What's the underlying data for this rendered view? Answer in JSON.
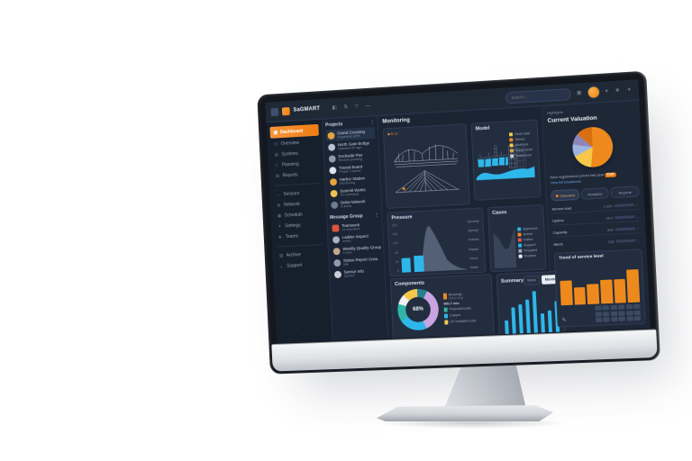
{
  "colors": {
    "accent_cyan": "#2eb7ea",
    "accent_orange": "#ee8a1d",
    "accent_yellow": "#f5c84c",
    "screen_bg": "#1b2432",
    "card_bg": "#222d40"
  },
  "brand": {
    "name": "SaGMART"
  },
  "topbar": {
    "nav_icons": [
      "◧",
      "⇅",
      "▽",
      "—"
    ],
    "search_placeholder": "Search...",
    "grid_icon": "▦",
    "caret_icon": "▾",
    "share_icon": "❖",
    "apps_icon": "✦"
  },
  "sidebar": {
    "active": {
      "icon": "▣",
      "label": "Dashboard"
    },
    "groups": [
      {
        "items": [
          {
            "icon": "◳",
            "label": "Overview"
          },
          {
            "icon": "▤",
            "label": "Systems"
          },
          {
            "icon": "◇",
            "label": "Planning"
          },
          {
            "icon": "▥",
            "label": "Reports"
          }
        ]
      },
      {
        "items": [
          {
            "icon": "◔",
            "label": "Sensors"
          },
          {
            "icon": "◍",
            "label": "Network"
          },
          {
            "icon": "▦",
            "label": "Schedule"
          },
          {
            "icon": "✦",
            "label": "Settings"
          },
          {
            "icon": "◈",
            "label": "Teams"
          }
        ]
      },
      {
        "items": [
          {
            "icon": "▧",
            "label": "Archive"
          },
          {
            "icon": "◖",
            "label": "Support"
          }
        ]
      }
    ],
    "dots": "··"
  },
  "projects_panel": {
    "title": "Projects",
    "menu": "⋮",
    "items": [
      {
        "name": "Grand Crossing",
        "sub": "Inspection 84%"
      },
      {
        "name": "North Gate Bridge",
        "sub": "Updated 2h ago"
      },
      {
        "name": "Dockside Pier",
        "sub": "Review pending"
      },
      {
        "name": "Transit Board",
        "sub": "Phase 2 active"
      },
      {
        "name": "Harbor Station",
        "sub": "Monitoring"
      },
      {
        "name": "Summit Works",
        "sub": "On schedule"
      },
      {
        "name": "Delta Network",
        "sub": "3 alerts"
      }
    ],
    "teams_title": "Message Group",
    "teams_menu": "⋮",
    "team_items": [
      {
        "name": "Teamwork",
        "sub": "12 members"
      },
      {
        "name": "Ladder Inspect",
        "sub": "online"
      },
      {
        "name": "Weekly Quality Group",
        "sub": "4 new"
      },
      {
        "name": "Status Report Crew",
        "sub": "idle"
      },
      {
        "name": "Sensor Info",
        "sub": "synced"
      }
    ]
  },
  "main": {
    "section_title": "Monitoring",
    "bridge_card": {
      "tag": "◆ B-12"
    },
    "model_card": {
      "title": "Model",
      "legend": [
        {
          "color": "#f5c84c",
          "label": "Deck load"
        },
        {
          "color": "#ee8a1d",
          "label": "Stress"
        },
        {
          "color": "#f5c84c",
          "label": "Moisture"
        },
        {
          "color": "#e0a43c",
          "label": "Water level"
        },
        {
          "color": "#c8cdd6",
          "label": "Reference"
        }
      ]
    },
    "pressure": {
      "title": "Pressure",
      "yticks": [
        "200",
        "160",
        "120",
        "80",
        "40",
        "0"
      ],
      "bars": [
        30,
        33
      ],
      "side_labels": [
        "Severity",
        "Spread",
        "Volume",
        "Impact",
        "Trend",
        "Totals"
      ],
      "xticks": [
        "01",
        "02",
        "03",
        "04"
      ]
    },
    "cases": {
      "title": "Cases",
      "bars": [
        55,
        75,
        50,
        45,
        42,
        62,
        88
      ],
      "legend": [
        {
          "color": "#2eb7ea",
          "label": "Approved"
        },
        {
          "color": "#ee8a1d",
          "label": "Active"
        },
        {
          "color": "#e05555",
          "label": "Failed"
        },
        {
          "color": "#2eb7ea",
          "label": "Support"
        },
        {
          "color": "#9aa7ba",
          "label": "Dropped"
        },
        {
          "color": "#e8edf3",
          "label": "Routine"
        }
      ]
    },
    "components": {
      "title": "Components",
      "center_label": "68%",
      "segments": [
        {
          "color": "#27808f",
          "value": 8
        },
        {
          "color": "#c9a4e0",
          "value": 36
        },
        {
          "color": "#2eb7ea",
          "value": 22
        },
        {
          "color": "#2fb5a8",
          "value": 14
        },
        {
          "color": "#eef1f5",
          "value": 8
        },
        {
          "color": "#f5c84c",
          "value": 12
        }
      ],
      "legend_top": {
        "color": "#ee8a1d",
        "label": "Bearings",
        "sub": "Steel ring"
      },
      "legend_caption": "WD-7 mix",
      "legend": [
        {
          "color": "#2fb5a8",
          "label": "Polycarbonate"
        },
        {
          "color": "#2eb7ea",
          "label": "Copper"
        },
        {
          "color": "#f5c84c",
          "label": "UV resistant coat"
        }
      ]
    },
    "summary": {
      "title": "Summary",
      "toggles": [
        "Week",
        "Month"
      ],
      "bars": [
        35,
        62,
        66,
        76,
        92,
        46,
        52,
        70
      ]
    }
  },
  "right_panel": {
    "kicker": "Highlights",
    "title": "Current Valuation",
    "pie_segments": [
      {
        "color": "#ee8a1d",
        "value": 52
      },
      {
        "color": "#f5c84c",
        "value": 16
      },
      {
        "color": "#9db4e0",
        "value": 10
      },
      {
        "color": "#8f86b8",
        "value": 9
      },
      {
        "color": "#d96f12",
        "value": 13
      }
    ],
    "caption": "New registrations joined last year",
    "badge": "TOP",
    "caption2": "View full breakdown",
    "tabs": [
      "Overview",
      "Analytics",
      "Reports"
    ],
    "rows": [
      {
        "name": "Sensor load",
        "value": "1,024",
        "bar": 84,
        "color": "#f5c84c",
        "end": "↑"
      },
      {
        "name": "Uptime",
        "value": "99.9",
        "bar": 6,
        "color": "#9aa7ba",
        "end": "–"
      },
      {
        "name": "Capacity",
        "value": "640",
        "bar": 52,
        "color": "#e8edf3",
        "end": "↑"
      },
      {
        "name": "Alerts",
        "value": "128",
        "bar": 46,
        "color": "#ee8a1d",
        "end": "↓"
      }
    ],
    "trend": {
      "title": "Trend of service level",
      "bars": [
        58,
        42,
        47,
        57,
        56,
        78
      ],
      "grid": {
        "rows": 3,
        "cols": 6
      },
      "pencil_icon": "✎"
    }
  },
  "chart_data": [
    {
      "type": "bar",
      "title": "Pressure",
      "values": [
        30,
        33
      ],
      "note": "two cyan bars beside grey distribution curve",
      "ylim": [
        0,
        200
      ]
    },
    {
      "type": "bar",
      "title": "Cases",
      "values": [
        55,
        75,
        50,
        45,
        42,
        62,
        88
      ],
      "note": "cyan bars with grey area overlay"
    },
    {
      "type": "pie",
      "title": "Components donut",
      "values": [
        8,
        36,
        22,
        14,
        8,
        12
      ],
      "center": "68%"
    },
    {
      "type": "bar",
      "title": "Summary",
      "values": [
        35,
        62,
        66,
        76,
        92,
        46,
        52,
        70
      ]
    },
    {
      "type": "pie",
      "title": "Current Valuation",
      "values": [
        52,
        16,
        10,
        9,
        13
      ]
    },
    {
      "type": "bar",
      "title": "Trend of service level",
      "values": [
        58,
        42,
        47,
        57,
        56,
        78
      ]
    }
  ]
}
